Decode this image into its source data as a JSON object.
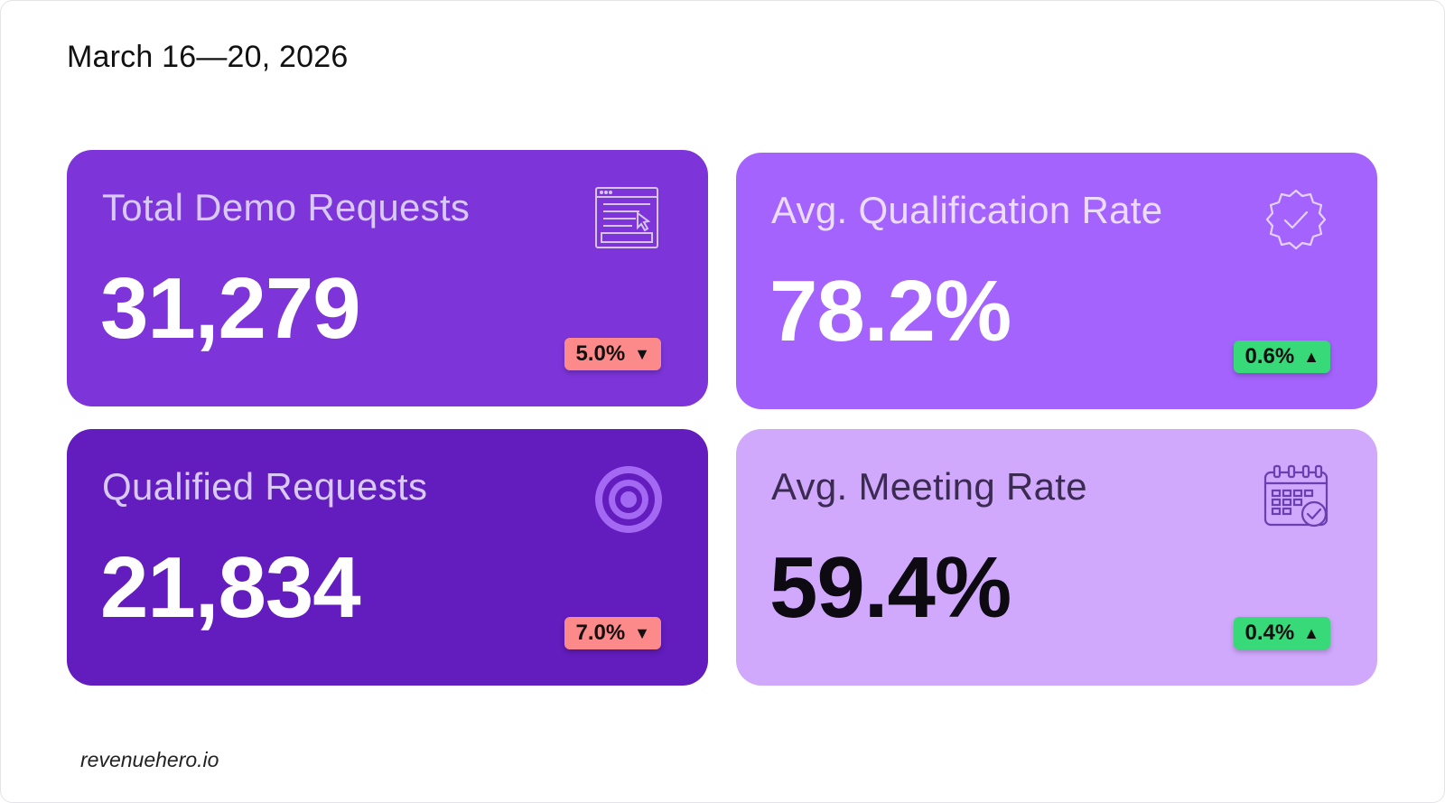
{
  "header": {
    "date_range": "March 16—20, 2026"
  },
  "cards": [
    {
      "label": "Total Demo Requests",
      "value": "31,279",
      "change": "5.0%",
      "direction": "down",
      "icon": "form-request-icon"
    },
    {
      "label": "Avg. Qualification Rate",
      "value": "78.2%",
      "change": "0.6%",
      "direction": "up",
      "icon": "verified-badge-icon"
    },
    {
      "label": "Qualified Requests",
      "value": "21,834",
      "change": "7.0%",
      "direction": "down",
      "icon": "target-icon"
    },
    {
      "label": "Avg. Meeting Rate",
      "value": "59.4%",
      "change": "0.4%",
      "direction": "up",
      "icon": "calendar-check-icon"
    }
  ],
  "colors": {
    "card_demo": "#7d35d9",
    "card_qual_rate": "#a463fd",
    "card_qualified": "#631cbd",
    "card_meeting": "#d0a8fc",
    "badge_down": "#fd8a8a",
    "badge_up": "#37d978"
  },
  "footer": {
    "brand": "revenuehero.io"
  }
}
